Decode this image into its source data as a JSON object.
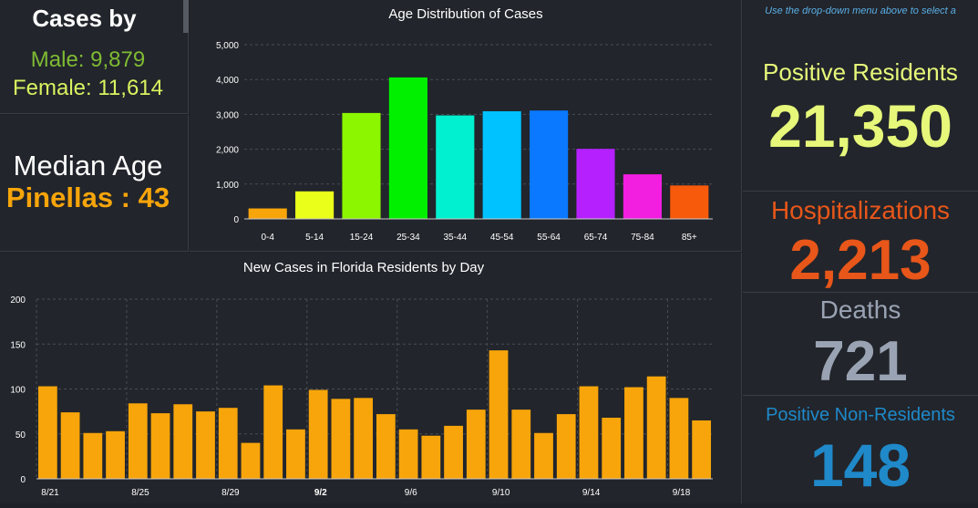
{
  "cases_by": {
    "title": "Cases by",
    "male_text": "Male: 9,879",
    "female_text": "Female: 11,614"
  },
  "median": {
    "label": "Median Age",
    "value_text": "Pinellas : 43"
  },
  "right": {
    "hint": "Use the drop-down menu above to select a",
    "positive_residents": {
      "label": "Positive Residents",
      "value": "21,350",
      "color": "#e6f77a"
    },
    "hospitalizations": {
      "label": "Hospitalizations",
      "value": "2,213",
      "color": "#e8561a"
    },
    "deaths": {
      "label": "Deaths",
      "value": "721",
      "color": "#9aa3b3"
    },
    "non_residents": {
      "label": "Positive Non-Residents",
      "value": "148",
      "color": "#1f89c9"
    }
  },
  "chart_data": [
    {
      "type": "bar",
      "title": "Age Distribution of Cases",
      "xlabel": "",
      "ylabel": "",
      "categories": [
        "0-4",
        "5-14",
        "15-24",
        "25-34",
        "35-44",
        "45-54",
        "55-64",
        "65-74",
        "75-84",
        "85+"
      ],
      "values": [
        300,
        790,
        3040,
        4060,
        2970,
        3090,
        3110,
        2010,
        1280,
        960
      ],
      "colors": [
        "#f7a50a",
        "#eaff1a",
        "#8cf500",
        "#00f000",
        "#00f0d0",
        "#00c2ff",
        "#0a78ff",
        "#b520ff",
        "#f21ee0",
        "#f75a0a"
      ],
      "ylim": [
        0,
        5000
      ],
      "yticks": [
        0,
        1000,
        2000,
        3000,
        4000,
        5000
      ],
      "ytick_labels": [
        "0",
        "1,000",
        "2,000",
        "3,000",
        "4,000",
        "5,000"
      ],
      "grid": true
    },
    {
      "type": "bar",
      "title": "New Cases in Florida Residents by Day",
      "xlabel": "",
      "ylabel": "",
      "categories": [
        "8/21",
        "8/22",
        "8/23",
        "8/24",
        "8/25",
        "8/26",
        "8/27",
        "8/28",
        "8/29",
        "8/30",
        "8/31",
        "9/1",
        "9/2",
        "9/3",
        "9/4",
        "9/5",
        "9/6",
        "9/7",
        "9/8",
        "9/9",
        "9/10",
        "9/11",
        "9/12",
        "9/13",
        "9/14",
        "9/15",
        "9/16",
        "9/17",
        "9/18",
        "9/19"
      ],
      "values": [
        103,
        74,
        51,
        53,
        84,
        73,
        83,
        75,
        79,
        40,
        104,
        55,
        99,
        89,
        90,
        72,
        55,
        48,
        59,
        77,
        143,
        77,
        51,
        72,
        103,
        68,
        102,
        114,
        90,
        65
      ],
      "tick_labels": [
        "8/21",
        "8/25",
        "8/29",
        "9/2",
        "9/6",
        "9/10",
        "9/14",
        "9/18"
      ],
      "tick_label_indices": [
        0,
        4,
        8,
        12,
        16,
        20,
        24,
        28
      ],
      "bold_tick": "9/2",
      "color": "#f7a50a",
      "ylim": [
        0,
        200
      ],
      "yticks": [
        0,
        50,
        100,
        150,
        200
      ],
      "grid": true
    }
  ]
}
